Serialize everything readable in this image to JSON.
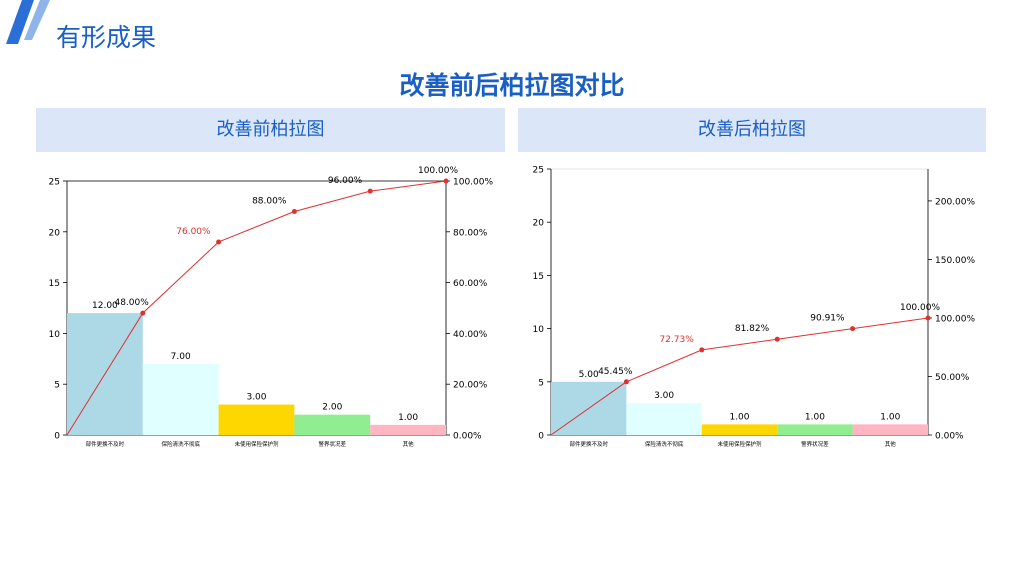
{
  "page": {
    "title": "有形成果",
    "main_title": "改善前后柏拉图对比",
    "accent_color": "#1a5fc4",
    "header_bg": "#dbe7f8"
  },
  "panels": [
    {
      "header": "改善前柏拉图"
    },
    {
      "header": "改善后柏拉图"
    }
  ],
  "chart_data": [
    {
      "type": "bar",
      "categories": [
        "部件更换不及时",
        "保险清洗不彻底",
        "未使用保险保护剂",
        "警界状况差",
        "其他"
      ],
      "values": [
        12,
        7,
        3,
        2,
        1
      ],
      "value_labels": [
        "12.00",
        "7.00",
        "3.00",
        "2.00",
        "1.00"
      ],
      "bar_colors": [
        "#add8e6",
        "#e0ffff",
        "#ffd700",
        "#90ee90",
        "#ffb6c1"
      ],
      "ylim": [
        0,
        25
      ],
      "y_ticks": [
        "0",
        "5",
        "10",
        "15",
        "20",
        "25"
      ],
      "cumulative": {
        "values": [
          48,
          76,
          88,
          96,
          100
        ],
        "labels": [
          "48.00%",
          "76.00%",
          "88.00%",
          "96.00%",
          "100.00%"
        ],
        "highlight_index": 1,
        "line_color": "#e03030",
        "ylim": [
          0,
          100
        ],
        "y_ticks": [
          "0.00%",
          "20.00%",
          "40.00%",
          "60.00%",
          "80.00%",
          "100.00%"
        ]
      },
      "grid": false
    },
    {
      "type": "bar",
      "categories": [
        "部件更换不及时",
        "保险清洗不彻底",
        "未使用保险保护剂",
        "警界状况差",
        "其他"
      ],
      "values": [
        5,
        3,
        1,
        1,
        1
      ],
      "value_labels": [
        "5.00",
        "3.00",
        "1.00",
        "1.00",
        "1.00"
      ],
      "bar_colors": [
        "#add8e6",
        "#e0ffff",
        "#ffd700",
        "#90ee90",
        "#ffb6c1"
      ],
      "ylim": [
        0,
        25
      ],
      "y_ticks": [
        "0",
        "5",
        "10",
        "15",
        "20",
        "25"
      ],
      "cumulative": {
        "values": [
          45.45,
          72.73,
          81.82,
          90.91,
          100
        ],
        "labels": [
          "45.45%",
          "72.73%",
          "81.82%",
          "90.91%",
          "100.00%"
        ],
        "highlight_index": 1,
        "line_color": "#e03030",
        "ylim": [
          0,
          227.27
        ],
        "y_ticks": [
          "0.00%",
          "50.00%",
          "100.00%",
          "150.00%",
          "200.00%"
        ],
        "y_tick_values": [
          0,
          50,
          100,
          150,
          200
        ]
      },
      "grid": false
    }
  ]
}
